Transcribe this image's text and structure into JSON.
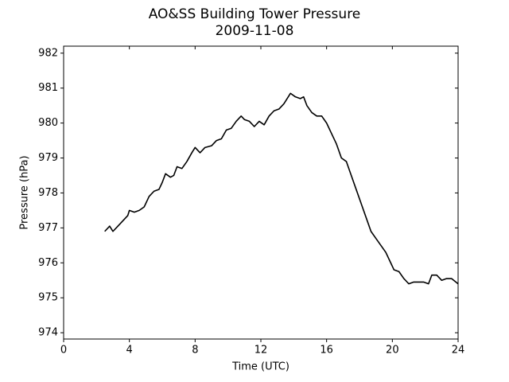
{
  "chart_data": {
    "type": "line",
    "title": "AO&SS Building Tower Pressure",
    "subtitle": "2009-11-08",
    "x_label": "Time (UTC)",
    "y_label": "Pressure (hPa)",
    "xlim": [
      0,
      24
    ],
    "xticks": [
      0,
      4,
      8,
      12,
      16,
      20,
      24
    ],
    "ylim": [
      973.82,
      982.2
    ],
    "yticks": [
      974,
      975,
      976,
      977,
      978,
      979,
      980,
      981,
      982
    ],
    "grid": false,
    "series": [
      {
        "color": "#000000",
        "x": [
          2.5,
          2.8,
          3.0,
          3.3,
          3.6,
          3.9,
          4.0,
          4.3,
          4.6,
          4.9,
          5.2,
          5.5,
          5.8,
          6.0,
          6.2,
          6.5,
          6.7,
          6.9,
          7.2,
          7.5,
          7.8,
          8.0,
          8.3,
          8.6,
          9.0,
          9.3,
          9.6,
          9.9,
          10.2,
          10.5,
          10.8,
          11.0,
          11.3,
          11.6,
          11.9,
          12.2,
          12.5,
          12.8,
          13.1,
          13.4,
          13.8,
          14.1,
          14.4,
          14.6,
          14.8,
          15.1,
          15.4,
          15.7,
          16.0,
          16.3,
          16.6,
          16.9,
          17.2,
          17.5,
          17.8,
          18.1,
          18.4,
          18.7,
          19.0,
          19.3,
          19.6,
          19.9,
          20.1,
          20.4,
          20.7,
          21.0,
          21.3,
          21.6,
          21.9,
          22.2,
          22.4,
          22.7,
          23.0,
          23.3,
          23.6,
          24.0
        ],
        "values": [
          976.9,
          977.05,
          976.9,
          977.05,
          977.2,
          977.35,
          977.5,
          977.45,
          977.5,
          977.6,
          977.9,
          978.05,
          978.1,
          978.3,
          978.55,
          978.45,
          978.5,
          978.75,
          978.7,
          978.9,
          979.15,
          979.3,
          979.15,
          979.3,
          979.35,
          979.5,
          979.55,
          979.8,
          979.85,
          980.05,
          980.2,
          980.1,
          980.05,
          979.9,
          980.05,
          979.95,
          980.2,
          980.35,
          980.4,
          980.55,
          980.85,
          980.75,
          980.7,
          980.75,
          980.5,
          980.3,
          980.2,
          980.2,
          980.0,
          979.7,
          979.4,
          979.0,
          978.9,
          978.5,
          978.1,
          977.7,
          977.3,
          976.9,
          976.7,
          976.5,
          976.3,
          976.0,
          975.8,
          975.75,
          975.55,
          975.4,
          975.45,
          975.45,
          975.45,
          975.4,
          975.65,
          975.65,
          975.5,
          975.55,
          975.55,
          975.4
        ]
      }
    ]
  }
}
